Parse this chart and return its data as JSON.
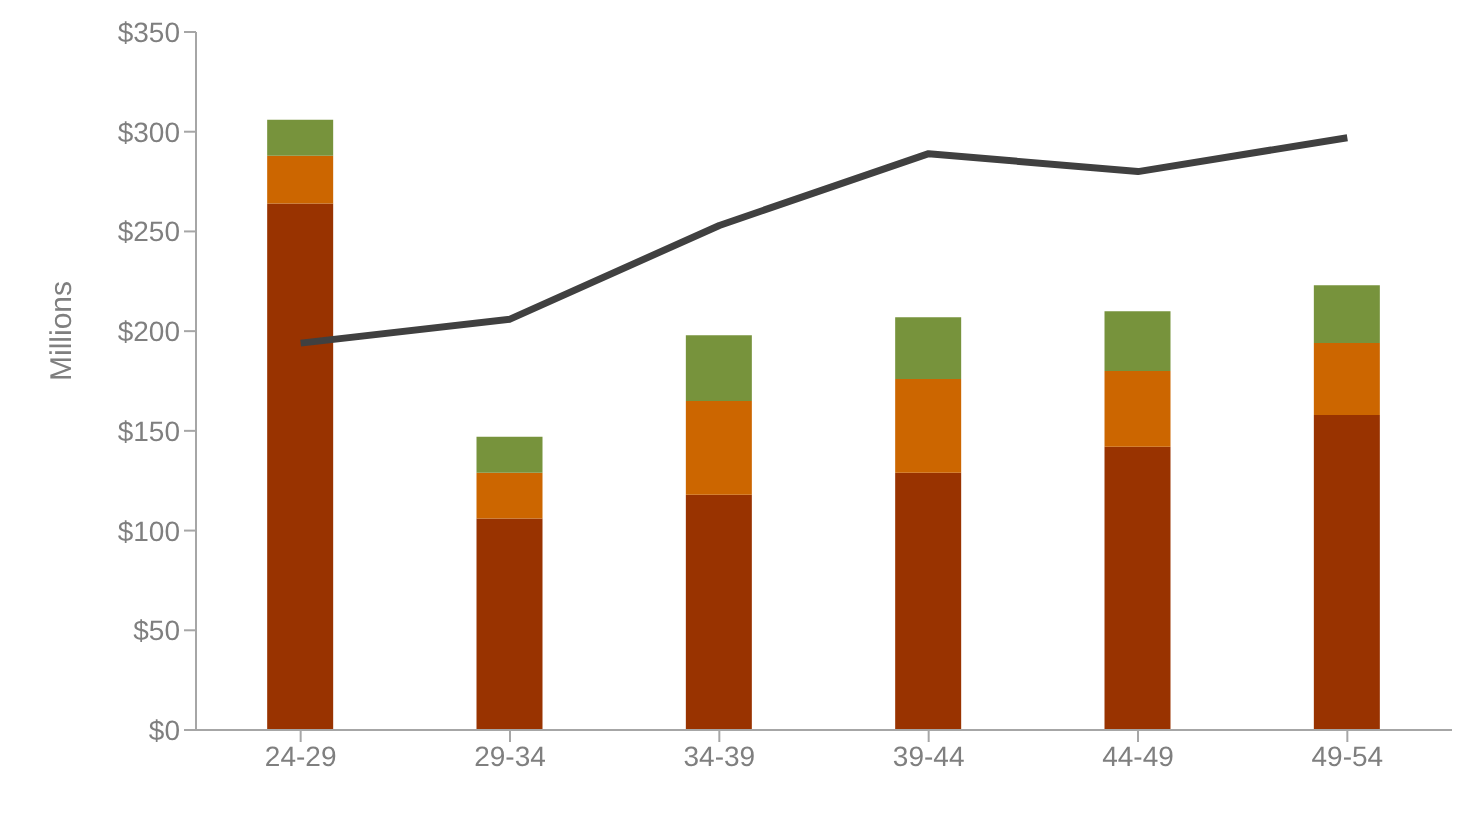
{
  "chart_data": {
    "type": "bar",
    "stacked": true,
    "ylabel": "Millions",
    "categories": [
      "24-29",
      "29-34",
      "34-39",
      "39-44",
      "44-49",
      "49-54"
    ],
    "series": [
      {
        "color": "#993300",
        "values": [
          264,
          106,
          118,
          129,
          142,
          158
        ]
      },
      {
        "color": "#cc6600",
        "values": [
          24,
          23,
          47,
          47,
          38,
          36
        ]
      },
      {
        "color": "#77933c",
        "values": [
          18,
          18,
          33,
          31,
          30,
          29
        ]
      },
      {
        "type": "line",
        "color": "#404040",
        "values": [
          194,
          206,
          253,
          289,
          280,
          297
        ]
      }
    ],
    "ylim": [
      0,
      350
    ],
    "yticks": [
      {
        "value": 0,
        "label": "$0"
      },
      {
        "value": 50,
        "label": "$50"
      },
      {
        "value": 100,
        "label": "$100"
      },
      {
        "value": 150,
        "label": "$150"
      },
      {
        "value": 200,
        "label": "$200"
      },
      {
        "value": 250,
        "label": "$250"
      },
      {
        "value": 300,
        "label": "$300"
      },
      {
        "value": 350,
        "label": "$350"
      }
    ],
    "grid": false,
    "legend": false
  }
}
